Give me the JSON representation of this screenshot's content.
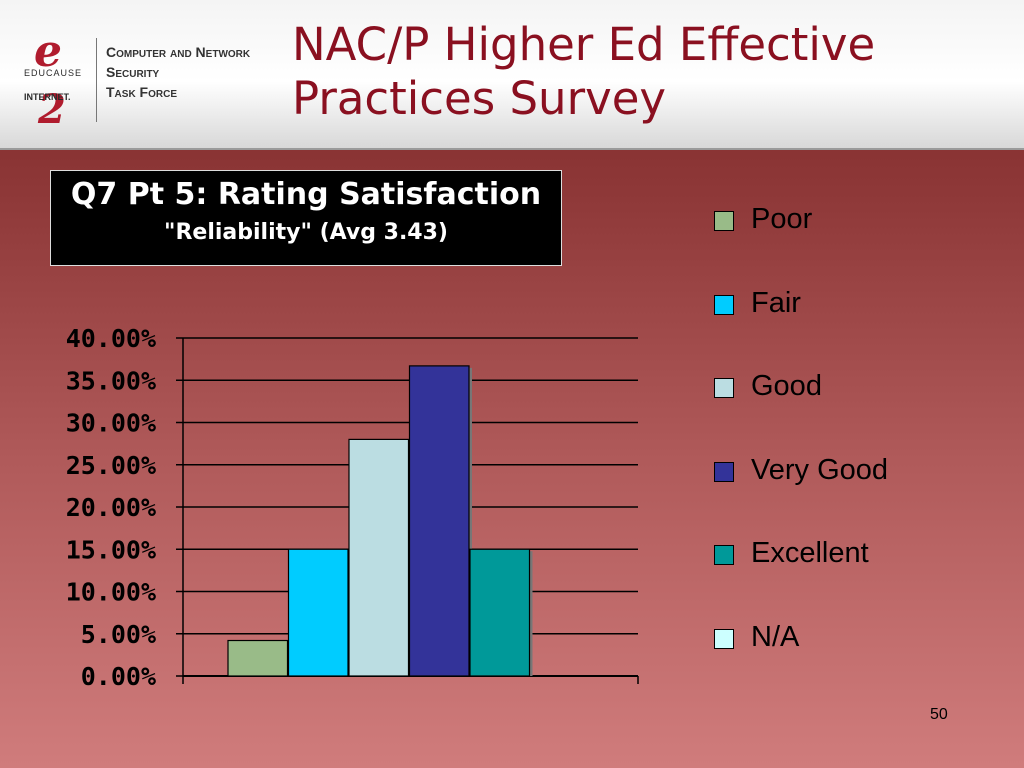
{
  "header": {
    "title_line1": "NAC/P Higher Ed Effective",
    "title_line2": "Practices Survey",
    "logo": {
      "educause": "EDUCAUSE",
      "internet2": "INTERNET.",
      "line1": "Computer and Network",
      "line2": "Security",
      "line3": "Task Force"
    }
  },
  "chart_data": {
    "type": "bar",
    "title_line1": "Q7 Pt 5: Rating Satisfaction",
    "title_line2": "\"Reliability\"  (Avg 3.43)",
    "categories": [
      "Poor",
      "Fair",
      "Good",
      "Very Good",
      "Excellent",
      "N/A"
    ],
    "values": [
      4.2,
      15.0,
      28.0,
      36.7,
      15.0,
      0.0
    ],
    "colors": [
      "#99bb88",
      "#00ccff",
      "#bbdde2",
      "#333399",
      "#009999",
      "#ccffff"
    ],
    "ylim": [
      0,
      40
    ],
    "yticks": [
      "0.00%",
      "5.00%",
      "10.00%",
      "15.00%",
      "20.00%",
      "25.00%",
      "30.00%",
      "35.00%",
      "40.00%"
    ],
    "grid": true,
    "legend_placement": "right",
    "xlabel": "",
    "ylabel": ""
  },
  "slide_number": "50"
}
